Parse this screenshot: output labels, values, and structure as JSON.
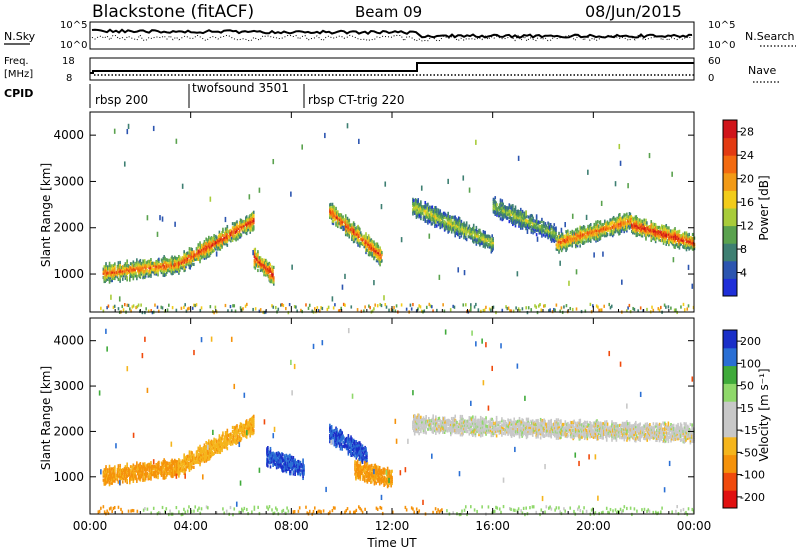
{
  "header": {
    "station": "Blackstone (fitACF)",
    "beam": "Beam 09",
    "date": "08/Jun/2015"
  },
  "aux": {
    "nsky_label": "N.Sky",
    "nsky_ticks": [
      "10^5",
      "10^0"
    ],
    "nsearch_label": "N.Search",
    "nsearch_ticks": [
      "10^5",
      "10^0"
    ],
    "freq_label": "Freq.",
    "freq_unit": "[MHz]",
    "freq_ticks": [
      "18",
      "8"
    ],
    "nave_label": "Nave",
    "nave_ticks": [
      "60",
      "0"
    ],
    "cpid_label": "CPID",
    "cpid_segments": [
      {
        "name": "rbsp 200",
        "start": "00:00"
      },
      {
        "name": "twofsound 3501",
        "start": "04:00"
      },
      {
        "name": "rbsp CT-trig 220",
        "start": "08:40"
      }
    ]
  },
  "colors": {
    "power": [
      "#1f2fd8",
      "#2c55b0",
      "#3e7f72",
      "#5aa24e",
      "#a8cc3a",
      "#f2cc1a",
      "#f29a16",
      "#f36a10",
      "#e23a12",
      "#d0141a"
    ],
    "velocity": [
      "#e01010",
      "#f04a0c",
      "#f5920a",
      "#f5b51c",
      "#c8c8c8",
      "#c8c8c8",
      "#8fd86a",
      "#3faa3a",
      "#2a6fd4",
      "#1a2fc8"
    ]
  },
  "chart_data": [
    {
      "type": "heatmap",
      "panel": "power",
      "xlabel": "",
      "ylabel": "Slant Range [km]",
      "xlim": [
        "00:00",
        "24:00"
      ],
      "ylim": [
        180,
        4500
      ],
      "yticks": [
        1000,
        2000,
        3000,
        4000
      ],
      "colorbar": {
        "label": "Power [dB]",
        "ticks": [
          4,
          8,
          12,
          16,
          20,
          24,
          28
        ],
        "range": [
          0,
          30
        ]
      },
      "scatter_bands": [
        {
          "start": 0.5,
          "end": 3.5,
          "range_start": 1050,
          "range_end": 1250,
          "peak_db": 22
        },
        {
          "start": 3.5,
          "end": 6.5,
          "range_start": 1250,
          "range_end": 2200,
          "peak_db": 24
        },
        {
          "start": 6.5,
          "end": 7.3,
          "range_start": 1400,
          "range_end": 1000,
          "peak_db": 26
        },
        {
          "start": 9.5,
          "end": 11.6,
          "range_start": 2400,
          "range_end": 1400,
          "peak_db": 24
        },
        {
          "start": 12.8,
          "end": 16.0,
          "range_start": 2500,
          "range_end": 1700,
          "peak_db": 14
        },
        {
          "start": 16.0,
          "end": 18.5,
          "range_start": 2500,
          "range_end": 1900,
          "peak_db": 12
        },
        {
          "start": 18.5,
          "end": 21.5,
          "range_start": 1700,
          "range_end": 2200,
          "peak_db": 22
        },
        {
          "start": 21.5,
          "end": 24.0,
          "range_start": 2100,
          "range_end": 1700,
          "peak_db": 26
        }
      ]
    },
    {
      "type": "heatmap",
      "panel": "velocity",
      "xlabel": "Time UT",
      "ylabel": "Slant Range [km]",
      "xlim": [
        "00:00",
        "24:00"
      ],
      "ylim": [
        180,
        4500
      ],
      "yticks": [
        1000,
        2000,
        3000,
        4000
      ],
      "xticks": [
        "00:00",
        "04:00",
        "08:00",
        "12:00",
        "16:00",
        "20:00",
        "00:00"
      ],
      "colorbar": {
        "label": "Velocity [m s⁻¹]",
        "ticks": [
          "-200",
          "-100",
          "-50",
          "-15",
          "15",
          "50",
          "100",
          "200"
        ],
        "range": [
          -250,
          250
        ]
      },
      "scatter_bands": [
        {
          "start": 0.5,
          "end": 3.5,
          "range_start": 1050,
          "range_end": 1250,
          "velocity": -60
        },
        {
          "start": 3.5,
          "end": 6.5,
          "range_start": 1250,
          "range_end": 2200,
          "velocity": -40
        },
        {
          "start": 7.0,
          "end": 8.5,
          "range_start": 1500,
          "range_end": 1200,
          "velocity": 200
        },
        {
          "start": 9.5,
          "end": 11.0,
          "range_start": 2000,
          "range_end": 1500,
          "velocity": 200
        },
        {
          "start": 10.5,
          "end": 12.0,
          "range_start": 1200,
          "range_end": 1000,
          "velocity": -60
        },
        {
          "start": 12.8,
          "end": 24.0,
          "range_start": 2200,
          "range_end": 2000,
          "velocity": 0
        }
      ]
    }
  ]
}
